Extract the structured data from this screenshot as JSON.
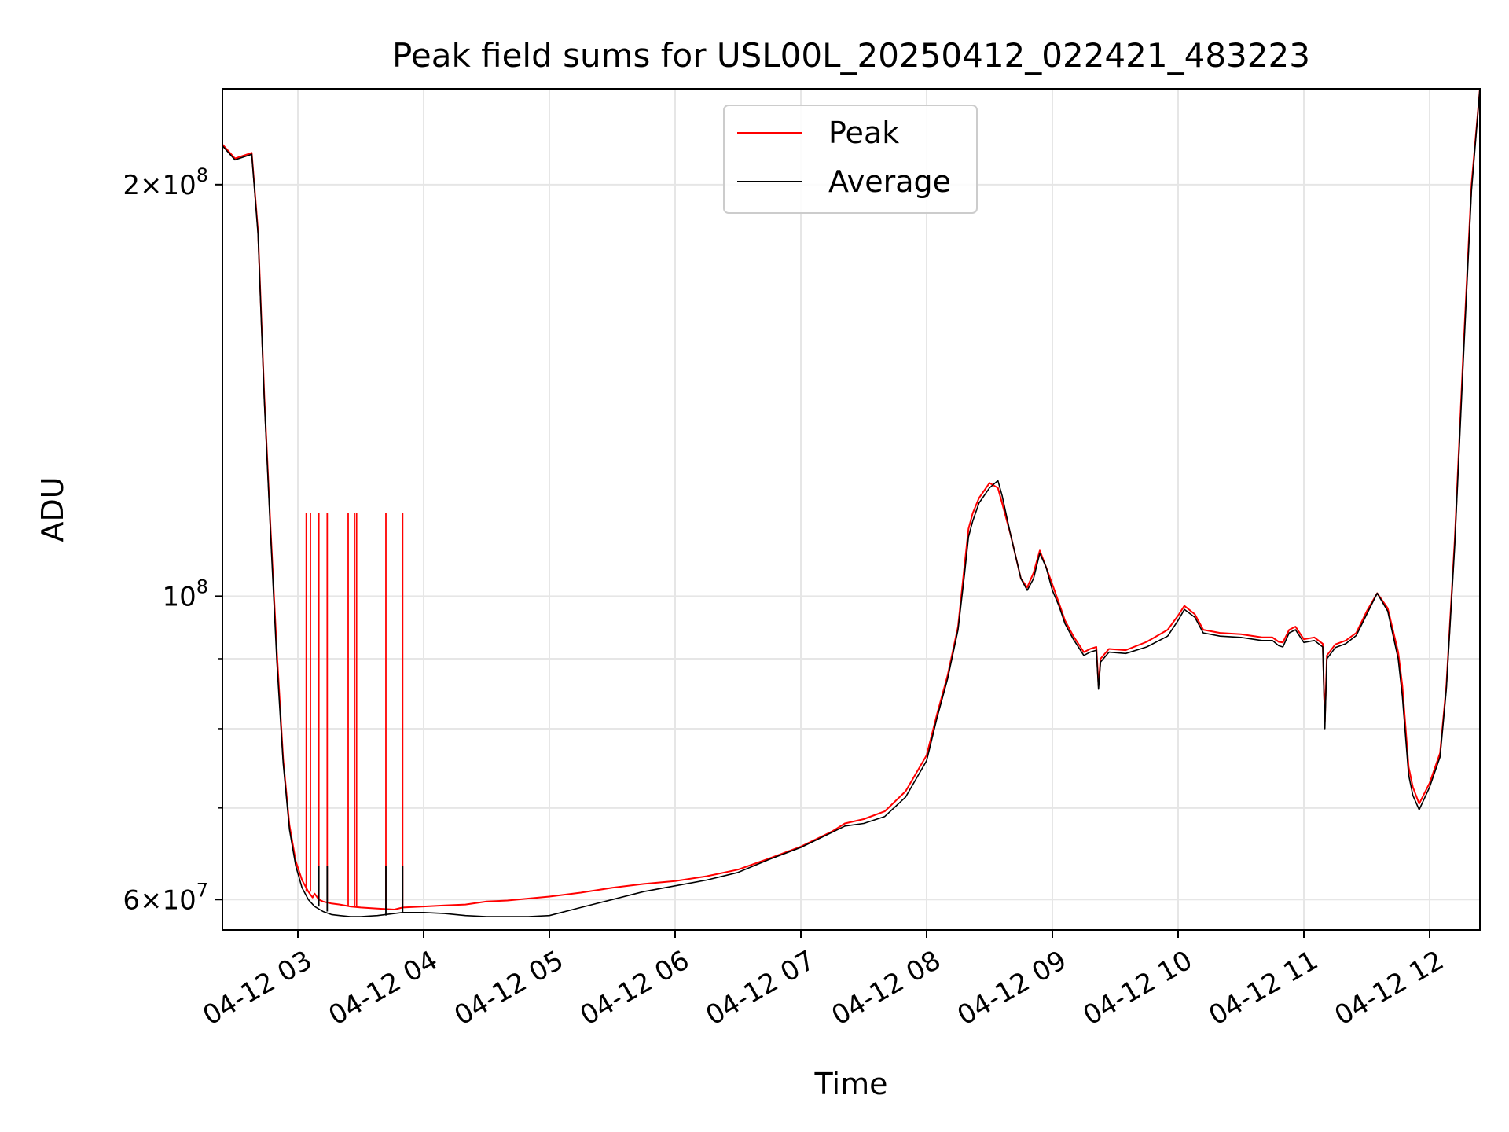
{
  "chart_data": {
    "type": "line",
    "title": "Peak field sums for USL00L_20250412_022421_483223",
    "xlabel": "Time",
    "ylabel": "ADU",
    "y_scale": "log",
    "ylim": [
      57000000,
      235000000
    ],
    "xlim": [
      "2025-04-12 02:24",
      "2025-04-12 12:24"
    ],
    "grid": true,
    "legend_position": "upper center",
    "x_tick_labels": [
      "04-12 03",
      "04-12 04",
      "04-12 05",
      "04-12 06",
      "04-12 07",
      "04-12 08",
      "04-12 09",
      "04-12 10",
      "04-12 11",
      "04-12 12"
    ],
    "x_tick_times": [
      "2025-04-12 03:00",
      "2025-04-12 04:00",
      "2025-04-12 05:00",
      "2025-04-12 06:00",
      "2025-04-12 07:00",
      "2025-04-12 08:00",
      "2025-04-12 09:00",
      "2025-04-12 10:00",
      "2025-04-12 11:00",
      "2025-04-12 12:00"
    ],
    "y_ticks": [
      {
        "value": 60000000,
        "mantissa": "6",
        "exponent": "7"
      },
      {
        "value": 100000000,
        "mantissa": "",
        "exponent": "8"
      },
      {
        "value": 200000000,
        "mantissa": "2",
        "exponent": "8"
      }
    ],
    "y_minor_ticks": [
      70000000,
      80000000,
      90000000
    ],
    "series": [
      {
        "name": "Peak",
        "color": "#ff0000",
        "x": [
          "2025-04-12 02:24",
          "2025-04-12 02:30",
          "2025-04-12 02:38",
          "2025-04-12 02:41",
          "2025-04-12 02:44",
          "2025-04-12 02:47",
          "2025-04-12 02:50",
          "2025-04-12 02:53",
          "2025-04-12 02:56",
          "2025-04-12 02:59",
          "2025-04-12 03:02",
          "2025-04-12 03:05",
          "2025-04-12 03:07",
          "2025-04-12 03:08",
          "2025-04-12 03:10",
          "2025-04-12 03:12",
          "2025-04-12 03:16",
          "2025-04-12 03:20",
          "2025-04-12 03:25",
          "2025-04-12 03:30",
          "2025-04-12 03:38",
          "2025-04-12 03:46",
          "2025-04-12 03:50",
          "2025-04-12 04:00",
          "2025-04-12 04:10",
          "2025-04-12 04:20",
          "2025-04-12 04:30",
          "2025-04-12 04:40",
          "2025-04-12 04:50",
          "2025-04-12 05:00",
          "2025-04-12 05:15",
          "2025-04-12 05:30",
          "2025-04-12 05:45",
          "2025-04-12 06:00",
          "2025-04-12 06:15",
          "2025-04-12 06:30",
          "2025-04-12 06:45",
          "2025-04-12 07:00",
          "2025-04-12 07:15",
          "2025-04-12 07:21",
          "2025-04-12 07:30",
          "2025-04-12 07:40",
          "2025-04-12 07:50",
          "2025-04-12 08:00",
          "2025-04-12 08:05",
          "2025-04-12 08:10",
          "2025-04-12 08:15",
          "2025-04-12 08:18",
          "2025-04-12 08:20",
          "2025-04-12 08:22",
          "2025-04-12 08:25",
          "2025-04-12 08:30",
          "2025-04-12 08:34",
          "2025-04-12 08:36",
          "2025-04-12 08:40",
          "2025-04-12 08:45",
          "2025-04-12 08:48",
          "2025-04-12 08:51",
          "2025-04-12 08:54",
          "2025-04-12 08:57",
          "2025-04-12 09:00",
          "2025-04-12 09:03",
          "2025-04-12 09:04",
          "2025-04-12 09:06",
          "2025-04-12 09:10",
          "2025-04-12 09:15",
          "2025-04-12 09:18",
          "2025-04-12 09:21",
          "2025-04-12 09:22",
          "2025-04-12 09:23",
          "2025-04-12 09:27",
          "2025-04-12 09:35",
          "2025-04-12 09:45",
          "2025-04-12 09:55",
          "2025-04-12 10:00",
          "2025-04-12 10:03",
          "2025-04-12 10:08",
          "2025-04-12 10:12",
          "2025-04-12 10:20",
          "2025-04-12 10:30",
          "2025-04-12 10:40",
          "2025-04-12 10:45",
          "2025-04-12 10:48",
          "2025-04-12 10:50",
          "2025-04-12 10:53",
          "2025-04-12 10:56",
          "2025-04-12 11:00",
          "2025-04-12 11:05",
          "2025-04-12 11:09",
          "2025-04-12 11:10",
          "2025-04-12 11:11",
          "2025-04-12 11:15",
          "2025-04-12 11:20",
          "2025-04-12 11:25",
          "2025-04-12 11:30",
          "2025-04-12 11:35",
          "2025-04-12 11:40",
          "2025-04-12 11:45",
          "2025-04-12 11:47",
          "2025-04-12 11:50",
          "2025-04-12 11:52",
          "2025-04-12 11:55",
          "2025-04-12 12:00",
          "2025-04-12 12:05",
          "2025-04-12 12:08",
          "2025-04-12 12:12",
          "2025-04-12 12:16",
          "2025-04-12 12:20",
          "2025-04-12 12:24"
        ],
        "y": [
          214000000,
          209000000,
          211000000,
          185000000,
          140000000,
          112000000,
          91000000,
          76000000,
          68000000,
          64000000,
          62000000,
          60800000,
          60200000,
          60600000,
          60000000,
          59800000,
          59600000,
          59500000,
          59300000,
          59200000,
          59100000,
          59000000,
          59200000,
          59300000,
          59400000,
          59500000,
          59800000,
          59900000,
          60100000,
          60300000,
          60700000,
          61200000,
          61600000,
          61900000,
          62400000,
          63100000,
          64300000,
          65600000,
          67300000,
          68200000,
          68700000,
          69600000,
          72000000,
          76500000,
          82000000,
          87500000,
          95000000,
          105000000,
          112000000,
          115000000,
          118000000,
          121000000,
          120000000,
          117000000,
          111000000,
          103000000,
          101500000,
          104000000,
          108000000,
          105000000,
          102000000,
          99000000,
          98000000,
          96000000,
          93500000,
          91000000,
          91500000,
          91800000,
          86000000,
          90000000,
          91500000,
          91300000,
          92600000,
          94500000,
          96800000,
          98400000,
          97000000,
          94500000,
          94000000,
          93800000,
          93300000,
          93300000,
          92600000,
          92500000,
          94500000,
          95000000,
          93000000,
          93300000,
          92300000,
          81000000,
          90500000,
          92200000,
          92800000,
          94000000,
          97500000,
          100500000,
          98000000,
          91000000,
          86000000,
          75000000,
          72500000,
          70500000,
          73000000,
          76800000,
          86000000,
          110000000,
          150000000,
          200000000,
          235000000
        ],
        "spike_x": [
          "2025-04-12 03:04",
          "2025-04-12 03:06",
          "2025-04-12 03:10",
          "2025-04-12 03:14",
          "2025-04-12 03:24",
          "2025-04-12 03:27",
          "2025-04-12 03:28",
          "2025-04-12 03:42",
          "2025-04-12 03:50"
        ],
        "spike_y": 115000000
      },
      {
        "name": "Average",
        "color": "#000000",
        "x": [
          "2025-04-12 02:24",
          "2025-04-12 02:30",
          "2025-04-12 02:38",
          "2025-04-12 02:41",
          "2025-04-12 02:44",
          "2025-04-12 02:47",
          "2025-04-12 02:50",
          "2025-04-12 02:53",
          "2025-04-12 02:56",
          "2025-04-12 02:59",
          "2025-04-12 03:02",
          "2025-04-12 03:05",
          "2025-04-12 03:08",
          "2025-04-12 03:12",
          "2025-04-12 03:16",
          "2025-04-12 03:20",
          "2025-04-12 03:25",
          "2025-04-12 03:30",
          "2025-04-12 03:38",
          "2025-04-12 03:46",
          "2025-04-12 03:50",
          "2025-04-12 04:00",
          "2025-04-12 04:10",
          "2025-04-12 04:20",
          "2025-04-12 04:30",
          "2025-04-12 04:40",
          "2025-04-12 04:50",
          "2025-04-12 05:00",
          "2025-04-12 05:15",
          "2025-04-12 05:30",
          "2025-04-12 05:45",
          "2025-04-12 06:00",
          "2025-04-12 06:15",
          "2025-04-12 06:30",
          "2025-04-12 06:45",
          "2025-04-12 07:00",
          "2025-04-12 07:15",
          "2025-04-12 07:21",
          "2025-04-12 07:30",
          "2025-04-12 07:40",
          "2025-04-12 07:50",
          "2025-04-12 08:00",
          "2025-04-12 08:05",
          "2025-04-12 08:10",
          "2025-04-12 08:15",
          "2025-04-12 08:18",
          "2025-04-12 08:20",
          "2025-04-12 08:22",
          "2025-04-12 08:25",
          "2025-04-12 08:30",
          "2025-04-12 08:34",
          "2025-04-12 08:36",
          "2025-04-12 08:40",
          "2025-04-12 08:45",
          "2025-04-12 08:48",
          "2025-04-12 08:51",
          "2025-04-12 08:54",
          "2025-04-12 08:57",
          "2025-04-12 09:00",
          "2025-04-12 09:03",
          "2025-04-12 09:04",
          "2025-04-12 09:06",
          "2025-04-12 09:10",
          "2025-04-12 09:15",
          "2025-04-12 09:18",
          "2025-04-12 09:21",
          "2025-04-12 09:22",
          "2025-04-12 09:23",
          "2025-04-12 09:27",
          "2025-04-12 09:35",
          "2025-04-12 09:45",
          "2025-04-12 09:55",
          "2025-04-12 10:00",
          "2025-04-12 10:03",
          "2025-04-12 10:08",
          "2025-04-12 10:12",
          "2025-04-12 10:20",
          "2025-04-12 10:30",
          "2025-04-12 10:40",
          "2025-04-12 10:45",
          "2025-04-12 10:48",
          "2025-04-12 10:50",
          "2025-04-12 10:53",
          "2025-04-12 10:56",
          "2025-04-12 11:00",
          "2025-04-12 11:05",
          "2025-04-12 11:09",
          "2025-04-12 11:10",
          "2025-04-12 11:11",
          "2025-04-12 11:15",
          "2025-04-12 11:20",
          "2025-04-12 11:25",
          "2025-04-12 11:30",
          "2025-04-12 11:35",
          "2025-04-12 11:40",
          "2025-04-12 11:45",
          "2025-04-12 11:47",
          "2025-04-12 11:50",
          "2025-04-12 11:52",
          "2025-04-12 11:55",
          "2025-04-12 12:00",
          "2025-04-12 12:05",
          "2025-04-12 12:08",
          "2025-04-12 12:12",
          "2025-04-12 12:16",
          "2025-04-12 12:20",
          "2025-04-12 12:24"
        ],
        "y": [
          213500000,
          208500000,
          210500000,
          184000000,
          139000000,
          111000000,
          89500000,
          75500000,
          67500000,
          63500000,
          61200000,
          60000000,
          59300000,
          58800000,
          58500000,
          58400000,
          58300000,
          58300000,
          58400000,
          58600000,
          58700000,
          58700000,
          58600000,
          58400000,
          58300000,
          58300000,
          58300000,
          58400000,
          59200000,
          60000000,
          60800000,
          61400000,
          62000000,
          62800000,
          64200000,
          65500000,
          67200000,
          67900000,
          68200000,
          69000000,
          71300000,
          75800000,
          81500000,
          87000000,
          94500000,
          103500000,
          110500000,
          113500000,
          117000000,
          120000000,
          121500000,
          118500000,
          111000000,
          103000000,
          101000000,
          103000000,
          107500000,
          105000000,
          101000000,
          98500000,
          97500000,
          95500000,
          93000000,
          90500000,
          91000000,
          91300000,
          85500000,
          89500000,
          91000000,
          90800000,
          91800000,
          93500000,
          96000000,
          97800000,
          96500000,
          94000000,
          93500000,
          93300000,
          92800000,
          92800000,
          92000000,
          91800000,
          94000000,
          94500000,
          92500000,
          92800000,
          91800000,
          80000000,
          90000000,
          91700000,
          92300000,
          93600000,
          97000000,
          100500000,
          97500000,
          90000000,
          84500000,
          74000000,
          71500000,
          69800000,
          72500000,
          76300000,
          85500000,
          109000000,
          148000000,
          198000000,
          235000000
        ],
        "spike_x": [
          "2025-04-12 03:10",
          "2025-04-12 03:14",
          "2025-04-12 03:42",
          "2025-04-12 03:50"
        ],
        "spike_y": 63500000
      }
    ]
  }
}
